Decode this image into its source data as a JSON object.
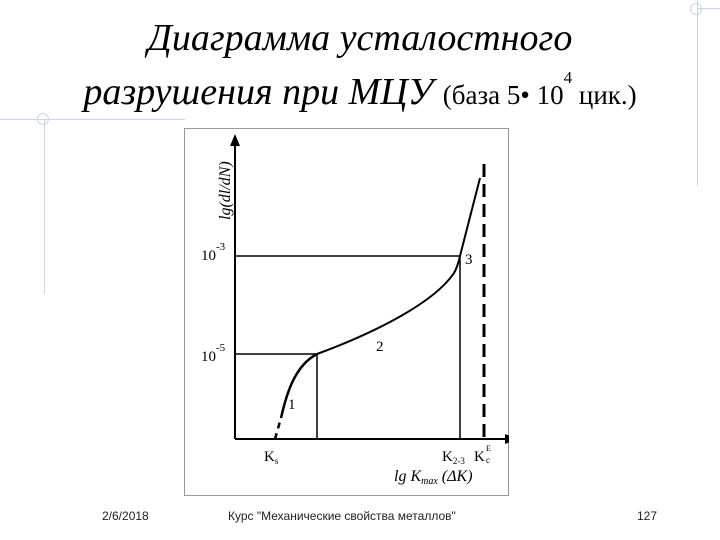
{
  "slide": {
    "title_line1": "Диаграмма усталостного",
    "title_line2_italic": "разрушения при МЦУ",
    "title_line2_paren_start": "(база 5• 10",
    "title_line2_exp": "4",
    "title_line2_paren_end": " цик.)"
  },
  "diagram": {
    "y_axis_label": "lg(dl/dN)",
    "y_tick_upper": {
      "base": "10",
      "exp": "-3"
    },
    "y_tick_lower": {
      "base": "10",
      "exp": "-5"
    },
    "x_axis_label": "lg K",
    "x_axis_label_sub": "max",
    "x_axis_label_paren": "(ΔK)",
    "x_tick_ks": {
      "main": "K",
      "sub": "s"
    },
    "x_tick_k23": {
      "main": "K",
      "sub": "2-3"
    },
    "x_tick_kce": {
      "main": "K",
      "sup": "E",
      "sub": "c"
    },
    "region_labels": [
      "1",
      "2",
      "3"
    ]
  },
  "footer": {
    "date": "2/6/2018",
    "course": "Курс \"Механические свойства металлов\"",
    "page": "127"
  }
}
